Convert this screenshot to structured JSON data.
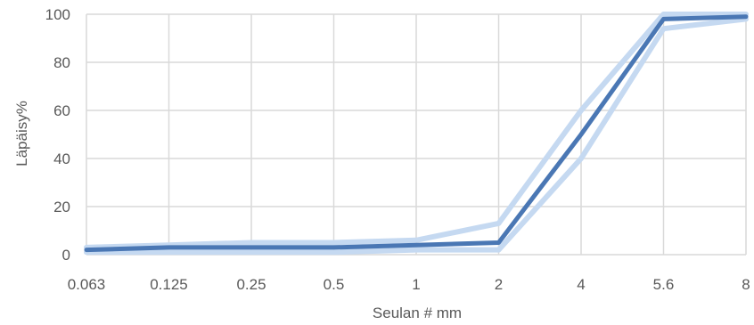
{
  "chart_data": {
    "type": "line",
    "title": "",
    "xlabel": "Seulan # mm",
    "ylabel": "Läpäisy%",
    "categories": [
      "0.063",
      "0.125",
      "0.25",
      "0.5",
      "1",
      "2",
      "4",
      "5.6",
      "8"
    ],
    "ylim": [
      0,
      100
    ],
    "yticks": [
      0,
      20,
      40,
      60,
      80,
      100
    ],
    "grid": true,
    "legend": "none",
    "series": [
      {
        "role": "upper-limit",
        "color": "#c5d9f1",
        "values": [
          3,
          4,
          5,
          5,
          6,
          13,
          60,
          100,
          100
        ]
      },
      {
        "role": "lower-limit",
        "color": "#c5d9f1",
        "values": [
          1,
          1,
          1,
          1,
          2,
          2,
          40,
          94,
          98
        ]
      },
      {
        "role": "measured",
        "color": "#4a77b4",
        "values": [
          2,
          3,
          3,
          3,
          4,
          5,
          50,
          98,
          99
        ]
      }
    ]
  }
}
